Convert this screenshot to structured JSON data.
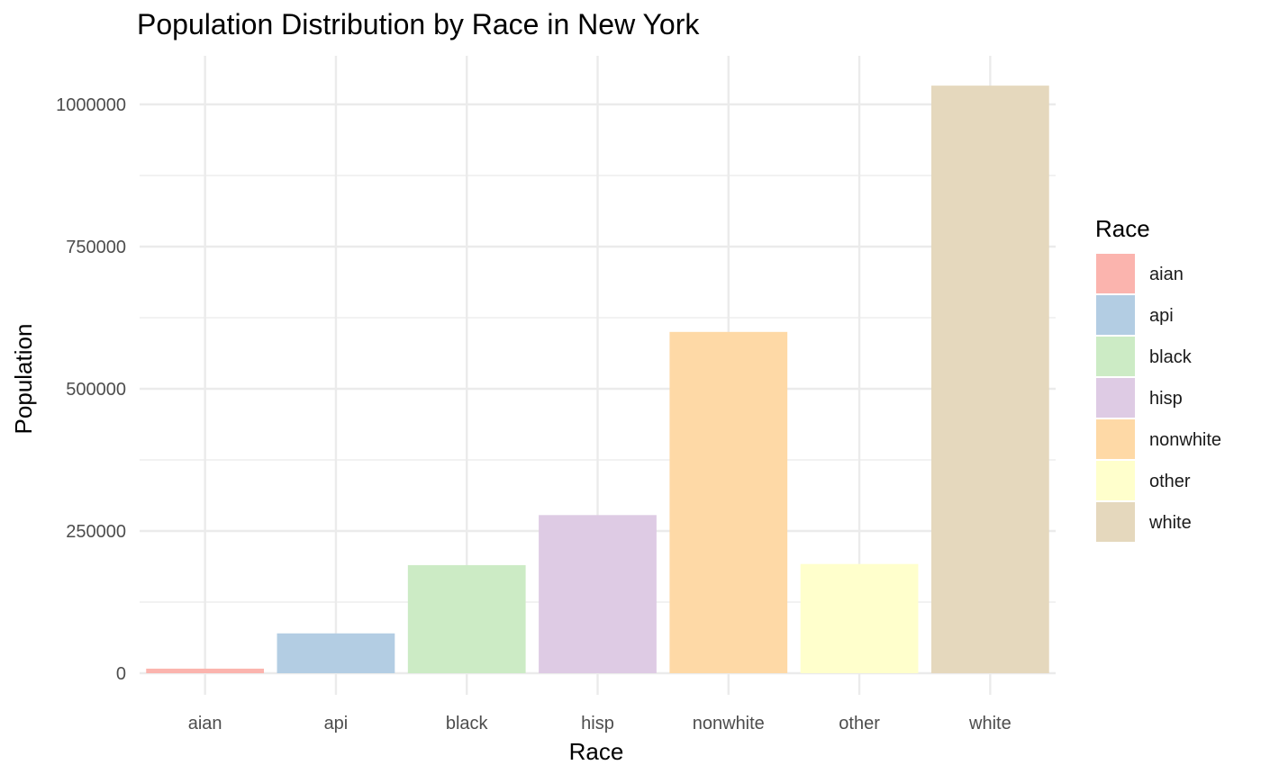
{
  "chart_data": {
    "type": "bar",
    "title": "Population Distribution by Race in New York",
    "xlabel": "Race",
    "ylabel": "Population",
    "categories": [
      "aian",
      "api",
      "black",
      "hisp",
      "nonwhite",
      "other",
      "white"
    ],
    "values": [
      8000,
      70000,
      190000,
      278000,
      600000,
      192000,
      1033000
    ],
    "colors": [
      "#FBB4AE",
      "#B3CDE3",
      "#CCEBC5",
      "#DECBE4",
      "#FED9A6",
      "#FFFFCC",
      "#E5D8BD"
    ],
    "ylim": [
      0,
      1080000
    ],
    "yticks": [
      0,
      250000,
      500000,
      750000,
      1000000
    ],
    "ytick_labels": [
      "0",
      "250000",
      "500000",
      "750000",
      "1000000"
    ],
    "grid": true,
    "legend": {
      "title": "Race",
      "position": "right",
      "entries": [
        "aian",
        "api",
        "black",
        "hisp",
        "nonwhite",
        "other",
        "white"
      ]
    }
  }
}
